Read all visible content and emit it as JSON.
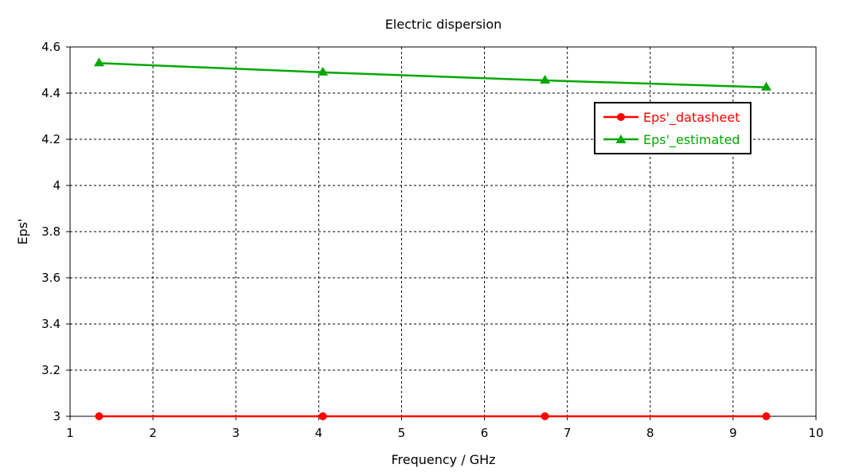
{
  "chart_data": {
    "type": "line",
    "title": "Electric dispersion",
    "xlabel": "Frequency / GHz",
    "ylabel": "Eps'",
    "xlim": [
      1,
      10
    ],
    "ylim": [
      3,
      4.6
    ],
    "xticks": [
      "1",
      "2",
      "3",
      "4",
      "5",
      "6",
      "7",
      "8",
      "9",
      "10"
    ],
    "yticks": [
      "3",
      "3.2",
      "3.4",
      "3.6",
      "3.8",
      "4",
      "4.2",
      "4.4",
      "4.6"
    ],
    "grid": true,
    "legend_position": "top-right",
    "series": [
      {
        "name": "Eps'_datasheet",
        "color": "#ff0000",
        "marker": "circle",
        "x": [
          1.35,
          4.05,
          6.73,
          9.4
        ],
        "y": [
          3.0,
          3.0,
          3.0,
          3.0
        ]
      },
      {
        "name": "Eps'_estimated",
        "color": "#00a800",
        "marker": "triangle",
        "x": [
          1.35,
          4.05,
          6.73,
          9.4
        ],
        "y": [
          4.53,
          4.49,
          4.455,
          4.425
        ]
      }
    ]
  }
}
